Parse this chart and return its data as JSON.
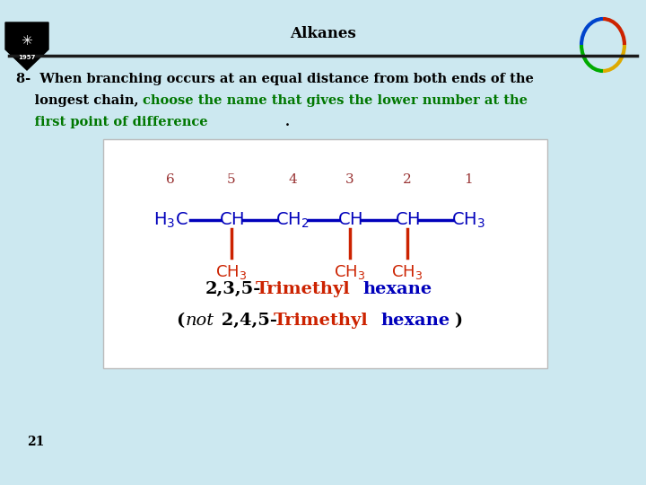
{
  "bg_color": "#cce8f0",
  "title": "Alkanes",
  "title_fontsize": 12,
  "header_line_color": "#1a1a1a",
  "box_bg": "#ffffff",
  "numbers": [
    "6",
    "5",
    "4",
    "3",
    "2",
    "1"
  ],
  "number_color": "#993333",
  "chain_color": "#0000bb",
  "branch_color": "#cc2200",
  "page_number": "21",
  "green_color": "#007700",
  "black_color": "#000000"
}
